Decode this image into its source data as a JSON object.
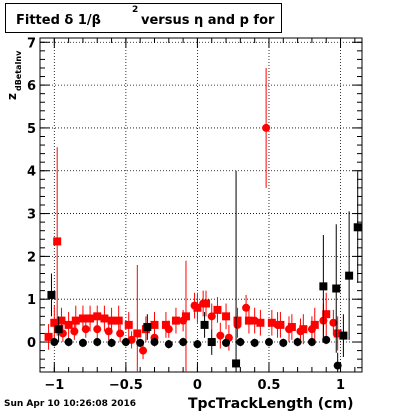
{
  "title": {
    "main": "Fitted δ 1/β",
    "sup": "2",
    "rest": " versus η and p for"
  },
  "footer": {
    "date": "Sun Apr 10 10:26:08 2016"
  },
  "colors": {
    "red": "#ff0000",
    "black": "#000000",
    "grid": "#000000"
  },
  "chart_data": {
    "type": "scatter",
    "title": "Fitted δ 1/β² versus η and p for",
    "xlabel": "TpcTrackLength (cm)",
    "ylabel": "z dBetaInv",
    "ylabel_main": "z",
    "ylabel_sub": "dBetaInv",
    "xlim": [
      -1.1,
      1.15
    ],
    "ylim": [
      -0.7,
      7.1
    ],
    "xticks": [
      -1,
      -0.5,
      0,
      0.5,
      1
    ],
    "xtick_labels": [
      "−1",
      "−0.5",
      "0",
      "0.5",
      "1"
    ],
    "yticks": [
      0,
      1,
      2,
      3,
      4,
      5,
      6,
      7
    ],
    "ytick_labels": [
      "0",
      "1",
      "2",
      "3",
      "4",
      "5",
      "6",
      "7"
    ],
    "grid": true,
    "series": [
      {
        "color": "#ff0000",
        "marker": "mixed",
        "points": [
          {
            "x": -1.04,
            "y": 0.12,
            "yerr": 0.3,
            "m": "s"
          },
          {
            "x": -1.0,
            "y": 0.45,
            "yerr": 0.4,
            "m": "s"
          },
          {
            "x": -0.98,
            "y": 2.35,
            "yerr": 2.2,
            "m": "s"
          },
          {
            "x": -0.95,
            "y": 0.5,
            "yerr": 0.3,
            "m": "s"
          },
          {
            "x": -0.9,
            "y": 0.4,
            "yerr": 0.3,
            "m": "s"
          },
          {
            "x": -0.85,
            "y": 0.5,
            "yerr": 0.35,
            "m": "s"
          },
          {
            "x": -0.8,
            "y": 0.55,
            "yerr": 0.3,
            "m": "s"
          },
          {
            "x": -0.75,
            "y": 0.55,
            "yerr": 0.3,
            "m": "s"
          },
          {
            "x": -0.7,
            "y": 0.6,
            "yerr": 0.25,
            "m": "s"
          },
          {
            "x": -0.65,
            "y": 0.55,
            "yerr": 0.3,
            "m": "s"
          },
          {
            "x": -0.6,
            "y": 0.5,
            "yerr": 0.3,
            "m": "s"
          },
          {
            "x": -0.55,
            "y": 0.5,
            "yerr": 0.35,
            "m": "s"
          },
          {
            "x": -0.48,
            "y": 0.4,
            "yerr": 0.3,
            "m": "s"
          },
          {
            "x": -0.42,
            "y": 0.2,
            "yerr": 1.6,
            "m": "s"
          },
          {
            "x": -0.36,
            "y": 0.3,
            "yerr": 0.3,
            "m": "s"
          },
          {
            "x": -0.3,
            "y": 0.4,
            "yerr": 0.3,
            "m": "s"
          },
          {
            "x": -0.22,
            "y": 0.4,
            "yerr": 0.3,
            "m": "s"
          },
          {
            "x": -0.15,
            "y": 0.5,
            "yerr": 0.3,
            "m": "s"
          },
          {
            "x": -0.08,
            "y": 0.6,
            "yerr": 1.3,
            "m": "s"
          },
          {
            "x": 0.0,
            "y": 0.8,
            "yerr": 0.35,
            "m": "s"
          },
          {
            "x": 0.06,
            "y": 0.9,
            "yerr": 0.3,
            "m": "s"
          },
          {
            "x": 0.14,
            "y": 0.75,
            "yerr": 0.3,
            "m": "s"
          },
          {
            "x": 0.2,
            "y": 0.6,
            "yerr": 0.3,
            "m": "s"
          },
          {
            "x": 0.28,
            "y": 0.5,
            "yerr": 0.3,
            "m": "s"
          },
          {
            "x": 0.36,
            "y": 0.5,
            "yerr": 0.3,
            "m": "s"
          },
          {
            "x": 0.44,
            "y": 0.45,
            "yerr": 0.3,
            "m": "s"
          },
          {
            "x": 0.52,
            "y": 0.45,
            "yerr": 0.3,
            "m": "s"
          },
          {
            "x": 0.58,
            "y": 0.4,
            "yerr": 0.3,
            "m": "s"
          },
          {
            "x": 0.66,
            "y": 0.35,
            "yerr": 0.3,
            "m": "s"
          },
          {
            "x": 0.74,
            "y": 0.3,
            "yerr": 0.35,
            "m": "s"
          },
          {
            "x": 0.82,
            "y": 0.4,
            "yerr": 0.4,
            "m": "s"
          },
          {
            "x": 0.9,
            "y": 0.65,
            "yerr": 0.5,
            "m": "s"
          },
          {
            "x": 0.98,
            "y": 0.2,
            "yerr": 0.4,
            "m": "s"
          },
          {
            "x": -0.94,
            "y": 0.2,
            "yerr": 0.2,
            "m": "c"
          },
          {
            "x": -0.86,
            "y": 0.25,
            "yerr": 0.2,
            "m": "c"
          },
          {
            "x": -0.78,
            "y": 0.3,
            "yerr": 0.2,
            "m": "c"
          },
          {
            "x": -0.7,
            "y": 0.3,
            "yerr": 0.2,
            "m": "c"
          },
          {
            "x": -0.62,
            "y": 0.25,
            "yerr": 0.2,
            "m": "c"
          },
          {
            "x": -0.54,
            "y": 0.2,
            "yerr": 0.2,
            "m": "c"
          },
          {
            "x": -0.46,
            "y": 0.05,
            "yerr": 0.2,
            "m": "c"
          },
          {
            "x": -0.38,
            "y": -0.2,
            "yerr": 0.2,
            "m": "c"
          },
          {
            "x": -0.3,
            "y": 0.1,
            "yerr": 0.2,
            "m": "c"
          },
          {
            "x": -0.2,
            "y": 0.3,
            "yerr": 0.2,
            "m": "c"
          },
          {
            "x": -0.1,
            "y": 0.5,
            "yerr": 0.25,
            "m": "c"
          },
          {
            "x": -0.02,
            "y": 0.85,
            "yerr": 0.3,
            "m": "c"
          },
          {
            "x": 0.04,
            "y": 0.9,
            "yerr": 0.3,
            "m": "c"
          },
          {
            "x": 0.1,
            "y": 0.6,
            "yerr": 0.3,
            "m": "c"
          },
          {
            "x": 0.16,
            "y": 0.15,
            "yerr": 0.3,
            "m": "c"
          },
          {
            "x": 0.22,
            "y": 0.1,
            "yerr": 0.3,
            "m": "c"
          },
          {
            "x": 0.28,
            "y": 0.4,
            "yerr": 0.3,
            "m": "c"
          },
          {
            "x": 0.34,
            "y": 0.8,
            "yerr": 0.3,
            "m": "c"
          },
          {
            "x": 0.4,
            "y": 0.5,
            "yerr": 0.3,
            "m": "c"
          },
          {
            "x": 0.48,
            "y": 5.0,
            "yerr": 1.4,
            "m": "c"
          },
          {
            "x": 0.56,
            "y": 0.4,
            "yerr": 0.3,
            "m": "c"
          },
          {
            "x": 0.64,
            "y": 0.3,
            "yerr": 0.3,
            "m": "c"
          },
          {
            "x": 0.72,
            "y": 0.25,
            "yerr": 0.3,
            "m": "c"
          },
          {
            "x": 0.8,
            "y": 0.3,
            "yerr": 0.3,
            "m": "c"
          },
          {
            "x": 0.88,
            "y": 0.5,
            "yerr": 0.4,
            "m": "c"
          },
          {
            "x": 0.95,
            "y": 0.45,
            "yerr": 0.3,
            "m": "c"
          }
        ]
      },
      {
        "color": "#000000",
        "marker": "mixed",
        "points": [
          {
            "x": -1.02,
            "y": 1.1,
            "yerr": 0.5,
            "m": "s"
          },
          {
            "x": -0.97,
            "y": 0.3,
            "yerr": 0.3,
            "m": "s"
          },
          {
            "x": -0.35,
            "y": 0.35,
            "yerr": 0.3,
            "m": "s"
          },
          {
            "x": 0.05,
            "y": 0.4,
            "yerr": 0.3,
            "m": "s"
          },
          {
            "x": 0.1,
            "y": 0.0,
            "yerr": 0.3,
            "m": "s"
          },
          {
            "x": 0.27,
            "y": -0.5,
            "yerr": 4.5,
            "m": "s"
          },
          {
            "x": 0.88,
            "y": 1.3,
            "yerr": 1.2,
            "m": "s"
          },
          {
            "x": 0.97,
            "y": 1.25,
            "yerr": 1.5,
            "m": "s"
          },
          {
            "x": 1.06,
            "y": 1.55,
            "yerr": 1.5,
            "m": "s"
          },
          {
            "x": 1.12,
            "y": 2.68,
            "yerr": 1.3,
            "m": "s"
          },
          {
            "x": 1.02,
            "y": 0.15,
            "yerr": 0.5,
            "m": "s"
          },
          {
            "x": 0.98,
            "y": -0.55,
            "yerr": 0.3,
            "m": "c"
          },
          {
            "x": -1.0,
            "y": 0.0,
            "yerr": 0.1,
            "m": "c"
          },
          {
            "x": -0.9,
            "y": 0.0,
            "yerr": 0.1,
            "m": "c"
          },
          {
            "x": -0.8,
            "y": -0.02,
            "yerr": 0.1,
            "m": "c"
          },
          {
            "x": -0.7,
            "y": 0.0,
            "yerr": 0.1,
            "m": "c"
          },
          {
            "x": -0.6,
            "y": -0.02,
            "yerr": 0.1,
            "m": "c"
          },
          {
            "x": -0.5,
            "y": 0.0,
            "yerr": 0.1,
            "m": "c"
          },
          {
            "x": -0.4,
            "y": -0.02,
            "yerr": 0.1,
            "m": "c"
          },
          {
            "x": -0.3,
            "y": 0.0,
            "yerr": 0.1,
            "m": "c"
          },
          {
            "x": -0.2,
            "y": -0.05,
            "yerr": 0.1,
            "m": "c"
          },
          {
            "x": -0.1,
            "y": 0.0,
            "yerr": 0.1,
            "m": "c"
          },
          {
            "x": 0.0,
            "y": -0.05,
            "yerr": 0.1,
            "m": "c"
          },
          {
            "x": 0.1,
            "y": 0.0,
            "yerr": 0.1,
            "m": "c"
          },
          {
            "x": 0.2,
            "y": -0.02,
            "yerr": 0.1,
            "m": "c"
          },
          {
            "x": 0.3,
            "y": 0.0,
            "yerr": 0.1,
            "m": "c"
          },
          {
            "x": 0.4,
            "y": -0.02,
            "yerr": 0.1,
            "m": "c"
          },
          {
            "x": 0.5,
            "y": 0.0,
            "yerr": 0.1,
            "m": "c"
          },
          {
            "x": 0.6,
            "y": -0.02,
            "yerr": 0.1,
            "m": "c"
          },
          {
            "x": 0.7,
            "y": 0.0,
            "yerr": 0.1,
            "m": "c"
          },
          {
            "x": 0.8,
            "y": 0.0,
            "yerr": 0.1,
            "m": "c"
          },
          {
            "x": 0.9,
            "y": 0.05,
            "yerr": 0.1,
            "m": "c"
          }
        ]
      }
    ]
  }
}
